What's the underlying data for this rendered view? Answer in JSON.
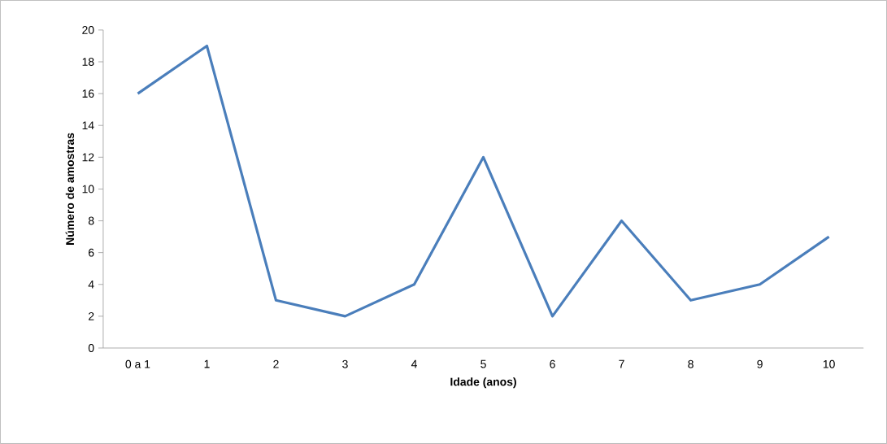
{
  "chart_data": {
    "type": "line",
    "xlabel": "Idade (anos)",
    "ylabel": "Número de amostras",
    "categories": [
      "0 a 1",
      "1",
      "2",
      "3",
      "4",
      "5",
      "6",
      "7",
      "8",
      "9",
      "10"
    ],
    "series": [
      {
        "color": "#4a7ebb",
        "values": [
          16,
          19,
          3,
          2,
          4,
          12,
          2,
          8,
          3,
          4,
          7
        ]
      }
    ],
    "ylim": [
      0,
      20
    ],
    "yticks": [
      0,
      2,
      4,
      6,
      8,
      10,
      12,
      14,
      16,
      18,
      20
    ],
    "grid": false,
    "marker": "none",
    "line_style": "solid"
  }
}
